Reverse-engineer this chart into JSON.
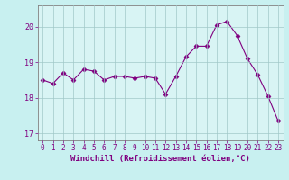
{
  "x": [
    0,
    1,
    2,
    3,
    4,
    5,
    6,
    7,
    8,
    9,
    10,
    11,
    12,
    13,
    14,
    15,
    16,
    17,
    18,
    19,
    20,
    21,
    22,
    23
  ],
  "y": [
    18.5,
    18.4,
    18.7,
    18.5,
    18.8,
    18.75,
    18.5,
    18.6,
    18.6,
    18.55,
    18.6,
    18.55,
    18.1,
    18.6,
    19.15,
    19.45,
    19.45,
    20.05,
    20.15,
    19.75,
    19.1,
    18.65,
    18.05,
    17.35
  ],
  "line_color": "#800080",
  "marker": "D",
  "marker_size": 2.5,
  "bg_color": "#c8f0f0",
  "plot_bg_color": "#d8f4f4",
  "grid_color": "#a0c8c8",
  "xlabel": "Windchill (Refroidissement éolien,°C)",
  "ylabel": "",
  "ylim": [
    16.8,
    20.6
  ],
  "xlim": [
    -0.5,
    23.5
  ],
  "yticks": [
    17,
    18,
    19,
    20
  ],
  "xticks": [
    0,
    1,
    2,
    3,
    4,
    5,
    6,
    7,
    8,
    9,
    10,
    11,
    12,
    13,
    14,
    15,
    16,
    17,
    18,
    19,
    20,
    21,
    22,
    23
  ],
  "tick_color": "#800080",
  "label_color": "#800080",
  "spine_color": "#808080",
  "tick_fontsize": 5.5,
  "xlabel_fontsize": 6.5
}
